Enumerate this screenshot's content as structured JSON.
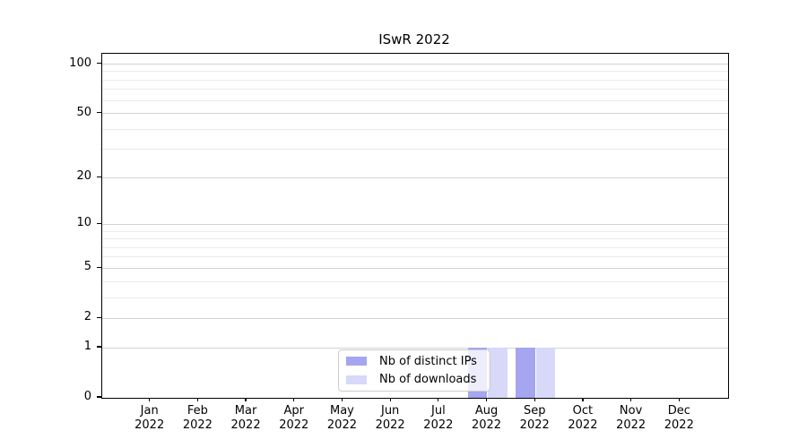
{
  "title": "ISwR 2022",
  "legend": {
    "items": [
      {
        "label": "Nb of distinct IPs",
        "swatch_color": "#a5a5f0"
      },
      {
        "label": "Nb of downloads",
        "swatch_color": "#d8d8f8"
      }
    ]
  },
  "axes": {
    "y_tick_labels": [
      "100",
      "50",
      "20",
      "10",
      "5",
      "2",
      "1",
      "0"
    ],
    "x_tick_month_labels": [
      "Jan",
      "Feb",
      "Mar",
      "Apr",
      "May",
      "Jun",
      "Jul",
      "Aug",
      "Sep",
      "Oct",
      "Nov",
      "Dec"
    ],
    "x_tick_year_label": "2022"
  },
  "chart_data": {
    "type": "bar",
    "title": "ISwR 2022",
    "categories": [
      "Jan 2022",
      "Feb 2022",
      "Mar 2022",
      "Apr 2022",
      "May 2022",
      "Jun 2022",
      "Jul 2022",
      "Aug 2022",
      "Sep 2022",
      "Oct 2022",
      "Nov 2022",
      "Dec 2022"
    ],
    "series": [
      {
        "name": "Nb of distinct IPs",
        "color": "#a5a5f0",
        "values": [
          0,
          0,
          0,
          0,
          0,
          0,
          0,
          1,
          1,
          0,
          0,
          0
        ]
      },
      {
        "name": "Nb of downloads",
        "color": "#d8d8f8",
        "values": [
          0,
          0,
          0,
          0,
          0,
          0,
          0,
          1,
          1,
          0,
          0,
          0
        ]
      }
    ],
    "xlabel": "",
    "ylabel": "",
    "yscale": "log1p",
    "ylim": [
      0,
      116
    ],
    "yticks_major": [
      0,
      1,
      2,
      5,
      10,
      20,
      50,
      100
    ],
    "yticks_minor": [
      3,
      4,
      6,
      7,
      8,
      9,
      30,
      40,
      60,
      70,
      80,
      90
    ],
    "grid": true,
    "legend_position": "inside-bottom-center",
    "colors": {
      "grid_major": "#d2d2d2",
      "grid_minor": "#ebebeb",
      "axis": "#000000",
      "legend_border": "#cccccc",
      "legend_background": "rgba(255,255,255,0.8)",
      "text": "#000000"
    }
  }
}
